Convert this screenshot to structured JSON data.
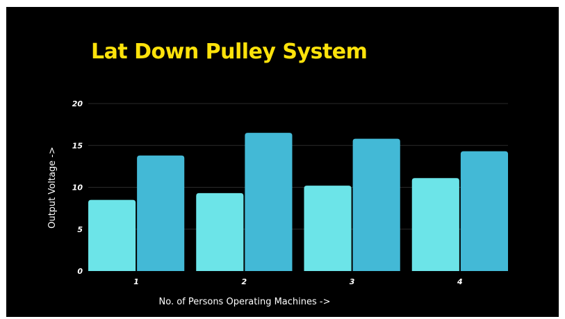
{
  "chart_data": {
    "type": "bar",
    "title": "Lat Down Pulley System",
    "xlabel": "No. of Persons Operating Machines ->",
    "ylabel": "Output Voltage ->",
    "categories": [
      "1",
      "2",
      "3",
      "4"
    ],
    "series": [
      {
        "values": [
          8.5,
          9.3,
          10.2,
          11.1
        ],
        "color": "#6ce4e8"
      },
      {
        "values": [
          13.8,
          16.5,
          15.8,
          14.3
        ],
        "color": "#43b9d6"
      }
    ],
    "ylim": [
      0,
      20
    ],
    "yticks": [
      "0",
      "5",
      "10",
      "15",
      "20"
    ],
    "grid": true,
    "background": "#000000",
    "title_color": "#fde20b"
  }
}
